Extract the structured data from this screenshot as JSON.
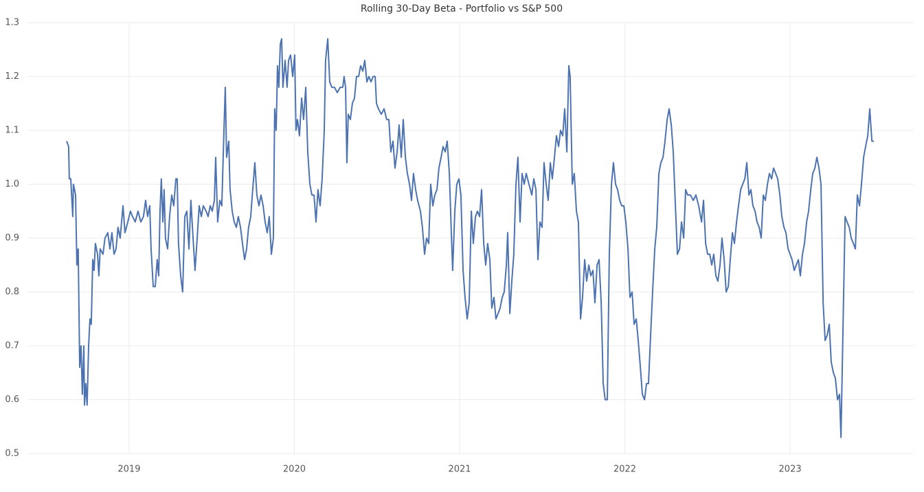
{
  "chart_data": {
    "type": "line",
    "title": "Rolling 30-Day Beta - Portfolio vs S&P 500",
    "x": [
      2018.622,
      2018.634,
      2018.638,
      2018.647,
      2018.659,
      2018.663,
      2018.676,
      2018.684,
      2018.692,
      2018.701,
      2018.709,
      2018.717,
      2018.726,
      2018.73,
      2018.738,
      2018.746,
      2018.755,
      2018.763,
      2018.771,
      2018.78,
      2018.788,
      2018.796,
      2018.809,
      2018.817,
      2018.825,
      2018.842,
      2018.854,
      2018.871,
      2018.884,
      2018.896,
      2018.909,
      2018.921,
      2018.933,
      2018.946,
      2018.963,
      2018.975,
      2018.992,
      2019.008,
      2019.021,
      2019.037,
      2019.054,
      2019.071,
      2019.087,
      2019.1,
      2019.112,
      2019.125,
      2019.133,
      2019.146,
      2019.158,
      2019.17,
      2019.179,
      2019.187,
      2019.195,
      2019.204,
      2019.212,
      2019.22,
      2019.233,
      2019.245,
      2019.258,
      2019.27,
      2019.283,
      2019.291,
      2019.299,
      2019.312,
      2019.324,
      2019.337,
      2019.349,
      2019.362,
      2019.374,
      2019.387,
      2019.399,
      2019.412,
      2019.424,
      2019.437,
      2019.449,
      2019.466,
      2019.478,
      2019.491,
      2019.503,
      2019.516,
      2019.524,
      2019.536,
      2019.549,
      2019.561,
      2019.574,
      2019.582,
      2019.59,
      2019.603,
      2019.611,
      2019.624,
      2019.636,
      2019.649,
      2019.661,
      2019.674,
      2019.686,
      2019.699,
      2019.711,
      2019.723,
      2019.736,
      2019.748,
      2019.761,
      2019.773,
      2019.786,
      2019.798,
      2019.811,
      2019.823,
      2019.836,
      2019.848,
      2019.861,
      2019.873,
      2019.881,
      2019.89,
      2019.898,
      2019.906,
      2019.915,
      2019.923,
      2019.931,
      2019.944,
      2019.956,
      2019.965,
      2019.977,
      2019.99,
      2020.002,
      2020.01,
      2020.019,
      2020.031,
      2020.044,
      2020.056,
      2020.069,
      2020.081,
      2020.094,
      2020.106,
      2020.119,
      2020.131,
      2020.143,
      2020.156,
      2020.168,
      2020.181,
      2020.189,
      2020.202,
      2020.214,
      2020.227,
      2020.243,
      2020.26,
      2020.277,
      2020.293,
      2020.301,
      2020.31,
      2020.318,
      2020.326,
      2020.339,
      2020.351,
      2020.364,
      2020.376,
      2020.389,
      2020.401,
      2020.414,
      2020.426,
      2020.439,
      2020.451,
      2020.464,
      2020.476,
      2020.489,
      2020.497,
      2020.509,
      2020.526,
      2020.543,
      2020.559,
      2020.572,
      2020.584,
      2020.597,
      2020.609,
      2020.622,
      2020.634,
      2020.647,
      2020.659,
      2020.672,
      2020.684,
      2020.697,
      2020.709,
      2020.721,
      2020.734,
      2020.746,
      2020.763,
      2020.775,
      2020.788,
      2020.8,
      2020.813,
      2020.825,
      2020.838,
      2020.85,
      2020.863,
      2020.875,
      2020.888,
      2020.9,
      2020.913,
      2020.925,
      2020.938,
      2020.95,
      2020.958,
      2020.971,
      2020.983,
      2020.996,
      2021.008,
      2021.021,
      2021.033,
      2021.046,
      2021.058,
      2021.071,
      2021.083,
      2021.096,
      2021.108,
      2021.121,
      2021.133,
      2021.146,
      2021.158,
      2021.17,
      2021.183,
      2021.195,
      2021.208,
      2021.22,
      2021.233,
      2021.245,
      2021.258,
      2021.27,
      2021.283,
      2021.291,
      2021.304,
      2021.316,
      2021.328,
      2021.341,
      2021.353,
      2021.366,
      2021.378,
      2021.391,
      2021.403,
      2021.42,
      2021.437,
      2021.449,
      2021.462,
      2021.474,
      2021.486,
      2021.499,
      2021.511,
      2021.524,
      2021.536,
      2021.549,
      2021.561,
      2021.574,
      2021.586,
      2021.599,
      2021.611,
      2021.624,
      2021.636,
      2021.649,
      2021.661,
      2021.669,
      2021.682,
      2021.694,
      2021.707,
      2021.719,
      2021.732,
      2021.744,
      2021.757,
      2021.769,
      2021.782,
      2021.794,
      2021.807,
      2021.819,
      2021.832,
      2021.844,
      2021.857,
      2021.869,
      2021.881,
      2021.894,
      2021.906,
      2021.919,
      2021.931,
      2021.944,
      2021.956,
      2021.969,
      2021.981,
      2021.994,
      2022.006,
      2022.019,
      2022.031,
      2022.044,
      2022.056,
      2022.069,
      2022.081,
      2022.094,
      2022.106,
      2022.119,
      2022.131,
      2022.143,
      2022.156,
      2022.168,
      2022.181,
      2022.193,
      2022.206,
      2022.218,
      2022.231,
      2022.243,
      2022.256,
      2022.268,
      2022.281,
      2022.293,
      2022.306,
      2022.318,
      2022.331,
      2022.343,
      2022.356,
      2022.368,
      2022.38,
      2022.397,
      2022.414,
      2022.43,
      2022.447,
      2022.464,
      2022.476,
      2022.489,
      2022.501,
      2022.514,
      2022.526,
      2022.538,
      2022.551,
      2022.563,
      2022.576,
      2022.588,
      2022.601,
      2022.613,
      2022.626,
      2022.638,
      2022.651,
      2022.663,
      2022.676,
      2022.688,
      2022.701,
      2022.713,
      2022.726,
      2022.738,
      2022.751,
      2022.763,
      2022.775,
      2022.788,
      2022.8,
      2022.813,
      2022.825,
      2022.838,
      2022.85,
      2022.863,
      2022.875,
      2022.888,
      2022.9,
      2022.913,
      2022.925,
      2022.938,
      2022.95,
      2022.963,
      2022.975,
      2022.988,
      2023.0,
      2023.012,
      2023.025,
      2023.037,
      2023.05,
      2023.062,
      2023.075,
      2023.087,
      2023.1,
      2023.112,
      2023.125,
      2023.137,
      2023.15,
      2023.162,
      2023.175,
      2023.187,
      2023.2,
      2023.212,
      2023.225,
      2023.237,
      2023.249,
      2023.262,
      2023.274,
      2023.287,
      2023.299,
      2023.308,
      2023.32,
      2023.333,
      2023.345,
      2023.358,
      2023.37,
      2023.383,
      2023.395,
      2023.407,
      2023.42,
      2023.432,
      2023.445,
      2023.457,
      2023.47,
      2023.482,
      2023.495,
      2023.507
    ],
    "series": [
      {
        "color": "#4c72b0",
        "values": [
          1.08,
          1.07,
          1.01,
          1.01,
          0.94,
          1.0,
          0.98,
          0.85,
          0.88,
          0.66,
          0.7,
          0.61,
          0.7,
          0.59,
          0.63,
          0.59,
          0.7,
          0.75,
          0.74,
          0.86,
          0.84,
          0.89,
          0.87,
          0.83,
          0.88,
          0.87,
          0.9,
          0.91,
          0.88,
          0.91,
          0.87,
          0.88,
          0.92,
          0.9,
          0.96,
          0.91,
          0.93,
          0.95,
          0.94,
          0.93,
          0.95,
          0.93,
          0.94,
          0.97,
          0.94,
          0.96,
          0.88,
          0.81,
          0.81,
          0.86,
          0.83,
          0.95,
          1.01,
          0.93,
          0.99,
          0.9,
          0.88,
          0.94,
          0.98,
          0.96,
          1.01,
          1.01,
          0.89,
          0.83,
          0.8,
          0.94,
          0.95,
          0.88,
          0.97,
          0.9,
          0.84,
          0.9,
          0.96,
          0.94,
          0.96,
          0.95,
          0.94,
          0.96,
          0.95,
          0.97,
          1.05,
          0.93,
          0.97,
          0.96,
          1.1,
          1.18,
          1.05,
          1.08,
          0.99,
          0.95,
          0.93,
          0.92,
          0.94,
          0.92,
          0.89,
          0.86,
          0.88,
          0.92,
          0.94,
          0.99,
          1.04,
          0.98,
          0.96,
          0.98,
          0.96,
          0.93,
          0.91,
          0.94,
          0.87,
          0.9,
          1.14,
          1.1,
          1.22,
          1.18,
          1.26,
          1.27,
          1.18,
          1.23,
          1.18,
          1.23,
          1.24,
          1.2,
          1.24,
          1.1,
          1.12,
          1.09,
          1.16,
          1.12,
          1.18,
          1.06,
          1.0,
          0.98,
          0.98,
          0.93,
          0.99,
          0.96,
          1.01,
          1.1,
          1.23,
          1.27,
          1.19,
          1.18,
          1.18,
          1.17,
          1.18,
          1.18,
          1.2,
          1.18,
          1.04,
          1.13,
          1.12,
          1.15,
          1.16,
          1.2,
          1.2,
          1.22,
          1.21,
          1.23,
          1.19,
          1.2,
          1.19,
          1.2,
          1.2,
          1.15,
          1.14,
          1.13,
          1.14,
          1.12,
          1.12,
          1.06,
          1.08,
          1.03,
          1.06,
          1.11,
          1.05,
          1.12,
          1.05,
          1.02,
          1.0,
          0.97,
          1.02,
          0.99,
          0.97,
          0.95,
          0.92,
          0.87,
          0.9,
          0.89,
          1.0,
          0.96,
          0.98,
          0.99,
          1.03,
          1.05,
          1.07,
          1.06,
          1.08,
          1.02,
          0.91,
          0.84,
          0.95,
          1.0,
          1.01,
          0.98,
          0.84,
          0.79,
          0.75,
          0.78,
          0.95,
          0.89,
          0.94,
          0.95,
          0.94,
          0.99,
          0.89,
          0.85,
          0.89,
          0.86,
          0.77,
          0.79,
          0.75,
          0.76,
          0.77,
          0.79,
          0.8,
          0.85,
          0.91,
          0.76,
          0.82,
          0.87,
          1.0,
          1.05,
          0.93,
          1.02,
          1.0,
          1.02,
          1.0,
          0.98,
          1.01,
          0.99,
          0.86,
          0.93,
          0.92,
          1.04,
          1.0,
          0.97,
          1.04,
          1.01,
          1.05,
          1.09,
          1.07,
          1.1,
          1.09,
          1.14,
          1.06,
          1.22,
          1.2,
          1.0,
          1.02,
          0.95,
          0.93,
          0.75,
          0.79,
          0.86,
          0.82,
          0.85,
          0.83,
          0.84,
          0.78,
          0.85,
          0.86,
          0.78,
          0.63,
          0.6,
          0.6,
          0.87,
          1.0,
          1.04,
          1.0,
          0.99,
          0.97,
          0.96,
          0.96,
          0.93,
          0.88,
          0.79,
          0.8,
          0.74,
          0.75,
          0.71,
          0.66,
          0.61,
          0.6,
          0.63,
          0.63,
          0.72,
          0.8,
          0.88,
          0.92,
          1.02,
          1.04,
          1.05,
          1.08,
          1.12,
          1.14,
          1.11,
          1.06,
          0.96,
          0.87,
          0.88,
          0.93,
          0.9,
          0.99,
          0.98,
          0.98,
          0.97,
          0.98,
          0.96,
          0.93,
          0.97,
          0.89,
          0.87,
          0.87,
          0.85,
          0.87,
          0.83,
          0.82,
          0.85,
          0.9,
          0.86,
          0.8,
          0.81,
          0.86,
          0.91,
          0.89,
          0.93,
          0.96,
          0.99,
          1.0,
          1.01,
          1.04,
          0.98,
          0.99,
          0.96,
          0.95,
          0.93,
          0.92,
          0.9,
          0.98,
          0.97,
          1.0,
          1.02,
          1.01,
          1.03,
          1.02,
          1.01,
          0.98,
          0.94,
          0.92,
          0.91,
          0.88,
          0.87,
          0.86,
          0.84,
          0.85,
          0.86,
          0.83,
          0.87,
          0.89,
          0.93,
          0.95,
          0.99,
          1.02,
          1.03,
          1.05,
          1.03,
          1.0,
          0.78,
          0.71,
          0.72,
          0.74,
          0.67,
          0.65,
          0.64,
          0.6,
          0.61,
          0.53,
          0.73,
          0.94,
          0.93,
          0.92,
          0.9,
          0.89,
          0.88,
          0.98,
          0.96,
          1.0,
          1.05,
          1.07,
          1.09,
          1.14,
          1.08,
          1.08
        ]
      }
    ],
    "xlim": [
      2018.385,
      2023.748
    ],
    "xticks": [
      2019,
      2020,
      2021,
      2022,
      2023
    ],
    "ylim": [
      0.5,
      1.3
    ],
    "yticks": [
      0.5,
      0.6,
      0.7,
      0.8,
      0.9,
      {
        "value": 1,
        "label": "1.0"
      },
      1.1,
      1.2,
      1.3
    ],
    "grid": true
  }
}
